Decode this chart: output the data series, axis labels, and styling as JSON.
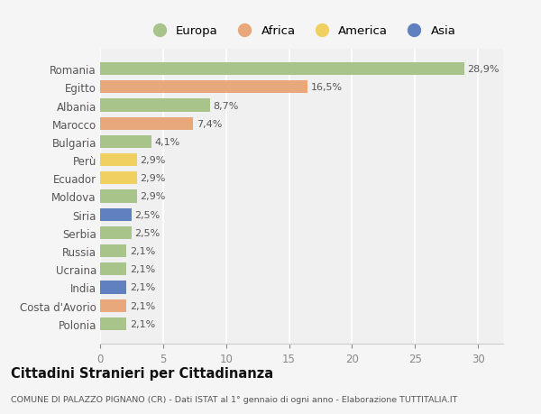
{
  "countries": [
    "Romania",
    "Egitto",
    "Albania",
    "Marocco",
    "Bulgaria",
    "Perù",
    "Ecuador",
    "Moldova",
    "Siria",
    "Serbia",
    "Russia",
    "Ucraina",
    "India",
    "Costa d'Avorio",
    "Polonia"
  ],
  "values": [
    28.9,
    16.5,
    8.7,
    7.4,
    4.1,
    2.9,
    2.9,
    2.9,
    2.5,
    2.5,
    2.1,
    2.1,
    2.1,
    2.1,
    2.1
  ],
  "labels": [
    "28,9%",
    "16,5%",
    "8,7%",
    "7,4%",
    "4,1%",
    "2,9%",
    "2,9%",
    "2,9%",
    "2,5%",
    "2,5%",
    "2,1%",
    "2,1%",
    "2,1%",
    "2,1%",
    "2,1%"
  ],
  "categories": [
    "Europa",
    "Africa",
    "Europa",
    "Africa",
    "Europa",
    "America",
    "America",
    "Europa",
    "Asia",
    "Europa",
    "Europa",
    "Europa",
    "Asia",
    "Africa",
    "Europa"
  ],
  "colors": {
    "Europa": "#a8c48a",
    "Africa": "#e8a87c",
    "America": "#f0d060",
    "Asia": "#6080c0"
  },
  "legend_order": [
    "Europa",
    "Africa",
    "America",
    "Asia"
  ],
  "bg_color": "#f5f5f5",
  "plot_bg_color": "#f0f0f0",
  "grid_color": "#ffffff",
  "title": "Cittadini Stranieri per Cittadinanza",
  "subtitle": "COMUNE DI PALAZZO PIGNANO (CR) - Dati ISTAT al 1° gennaio di ogni anno - Elaborazione TUTTITALIA.IT",
  "xlim": [
    0,
    32
  ],
  "xticks": [
    0,
    5,
    10,
    15,
    20,
    25,
    30
  ]
}
